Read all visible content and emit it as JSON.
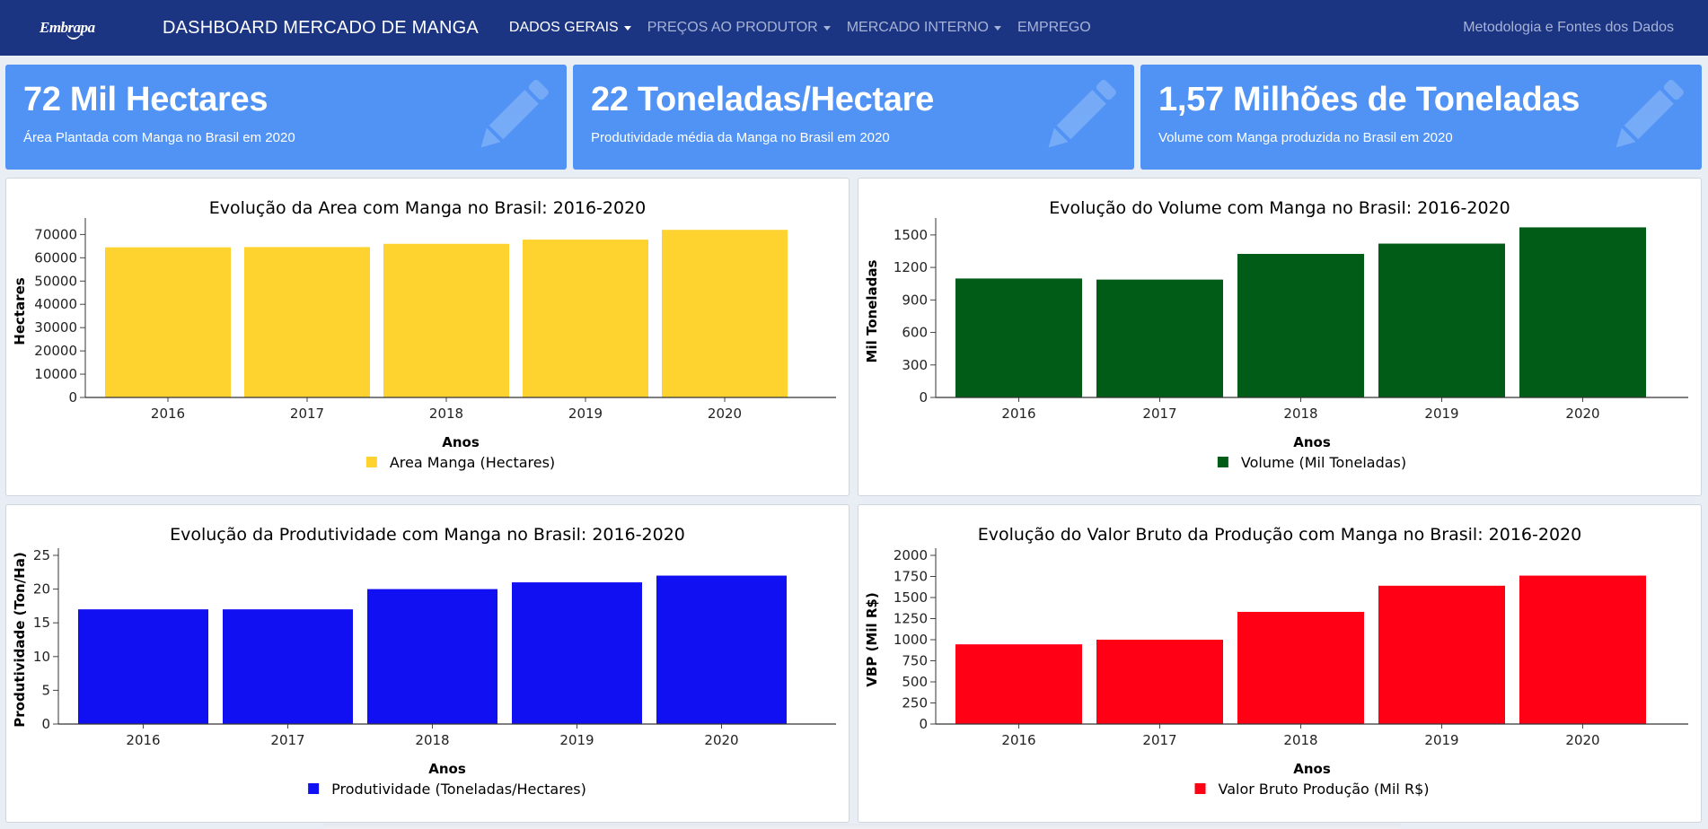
{
  "nav": {
    "logo": "Embrapa",
    "brand": "DASHBOARD MERCADO DE MANGA",
    "items": [
      {
        "label": "DADOS GERAIS",
        "dropdown": true,
        "active": true
      },
      {
        "label": "PREÇOS AO PRODUTOR",
        "dropdown": true,
        "active": false
      },
      {
        "label": "MERCADO INTERNO",
        "dropdown": true,
        "active": false
      },
      {
        "label": "EMPREGO",
        "dropdown": false,
        "active": false
      }
    ],
    "right": "Metodologia e Fontes dos Dados"
  },
  "kpis": [
    {
      "value": "72 Mil Hectares",
      "desc": "Área Plantada com Manga no Brasil em 2020",
      "icon": "pencil-icon"
    },
    {
      "value": "22 Toneladas/Hectare",
      "desc": "Produtividade média da Manga no Brasil em 2020",
      "icon": "pencil-icon"
    },
    {
      "value": "1,57 Milhões de Toneladas",
      "desc": "Volume com Manga produzida no Brasil em 2020",
      "icon": "pencil-icon"
    }
  ],
  "colors": {
    "navbar": "#1c3583",
    "kpi": "#5093f5"
  },
  "chart_data": [
    {
      "type": "bar",
      "title": "Evolução da Area com Manga no Brasil: 2016-2020",
      "categories": [
        "2016",
        "2017",
        "2018",
        "2019",
        "2020"
      ],
      "series": [
        {
          "name": "Area Manga (Hectares)",
          "values": [
            64500,
            64600,
            66000,
            67800,
            72000
          ],
          "color": "#fed330"
        }
      ],
      "xlabel": "Anos",
      "ylabel": "Hectares",
      "ylim": [
        0,
        74000
      ],
      "yticks": [
        0,
        10000,
        20000,
        30000,
        40000,
        50000,
        60000,
        70000
      ]
    },
    {
      "type": "bar",
      "title": "Evolução do Volume com Manga no Brasil: 2016-2020",
      "categories": [
        "2016",
        "2017",
        "2018",
        "2019",
        "2020"
      ],
      "series": [
        {
          "name": "Volume (Mil Toneladas)",
          "values": [
            1098,
            1088,
            1325,
            1420,
            1570
          ],
          "color": "#005c17"
        }
      ],
      "xlabel": "Anos",
      "ylabel": "Mil Toneladas",
      "ylim": [
        0,
        1590
      ],
      "yticks": [
        0,
        300,
        600,
        900,
        1200,
        1500
      ]
    },
    {
      "type": "bar",
      "title": "Evolução da Produtividade com Manga no Brasil: 2016-2020",
      "categories": [
        "2016",
        "2017",
        "2018",
        "2019",
        "2020"
      ],
      "series": [
        {
          "name": "Produtividade (Toneladas/Hectares)",
          "values": [
            17,
            17,
            20,
            21,
            22
          ],
          "color": "#1010f2"
        }
      ],
      "xlabel": "Anos",
      "ylabel": "Produtividade (Ton/Ha)",
      "ylim": [
        0,
        25
      ],
      "yticks": [
        0,
        5,
        10,
        15,
        20,
        25
      ]
    },
    {
      "type": "bar",
      "title": "Evolução do Valor Bruto da Produção com Manga no Brasil: 2016-2020",
      "categories": [
        "2016",
        "2017",
        "2018",
        "2019",
        "2020"
      ],
      "series": [
        {
          "name": "Valor Bruto Produção (Mil R$)",
          "values": [
            945,
            1000,
            1330,
            1640,
            1760
          ],
          "color": "#ff0015"
        }
      ],
      "xlabel": "Anos",
      "ylabel": "VBP (Mil R$)",
      "ylim": [
        0,
        2000
      ],
      "yticks": [
        0,
        250,
        500,
        750,
        1000,
        1250,
        1500,
        1750,
        2000
      ]
    }
  ]
}
